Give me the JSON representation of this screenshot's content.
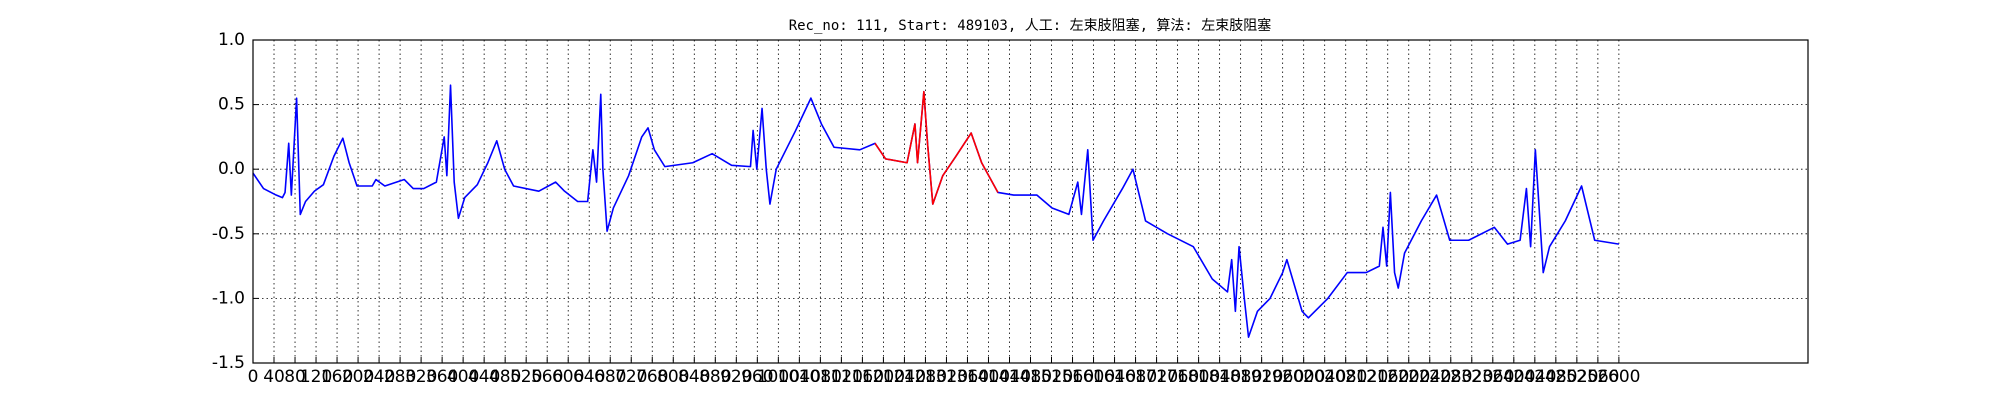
{
  "chart_data": {
    "type": "line",
    "title": "Rec_no: 111, Start: 489103, 人工: 左束肢阻塞, 算法: 左束肢阻塞",
    "series": [
      {
        "name": "blue",
        "color": "#0000ff",
        "x": [
          0,
          20,
          44,
          56,
          61,
          68,
          73,
          83,
          90,
          100,
          117,
          134,
          154,
          171,
          183,
          198,
          227,
          234,
          251,
          288,
          305,
          325,
          349,
          364,
          369,
          376,
          383,
          391,
          403,
          427,
          447,
          464,
          479,
          496,
          544,
          576,
          593,
          618,
          637,
          647,
          654,
          662,
          666,
          674,
          686,
          715,
          740,
          752,
          764,
          784,
          837,
          874,
          911,
          947,
          952,
          959,
          969,
          977,
          984,
          996,
          1033,
          1062,
          1082,
          1106,
          1155,
          1184,
          1204,
          1245,
          1260,
          1265,
          1277,
          1284,
          1294,
          1313,
          1338,
          1367,
          1387,
          1418,
          1448,
          1492,
          1521,
          1553,
          1570,
          1577,
          1589,
          1599,
          1619,
          1655,
          1675,
          1699,
          1741,
          1790,
          1826,
          1855,
          1863,
          1870,
          1877,
          1887,
          1895,
          1912,
          1936,
          1960,
          1968,
          1997,
          2009,
          2046,
          2083,
          2119,
          2144,
          2151,
          2158,
          2165,
          2173,
          2180,
          2192,
          2224,
          2253,
          2278,
          2314,
          2363,
          2388,
          2412,
          2424,
          2432,
          2441,
          2449,
          2456,
          2468,
          2498,
          2529,
          2554,
          2600
        ],
        "values": [
          -0.03,
          -0.15,
          -0.2,
          -0.22,
          -0.18,
          0.2,
          -0.2,
          0.55,
          -0.35,
          -0.25,
          -0.17,
          -0.12,
          0.1,
          0.24,
          0.05,
          -0.13,
          -0.13,
          -0.08,
          -0.13,
          -0.08,
          -0.15,
          -0.15,
          -0.1,
          0.25,
          -0.05,
          0.65,
          -0.1,
          -0.38,
          -0.22,
          -0.12,
          0.05,
          0.22,
          0.0,
          -0.13,
          -0.17,
          -0.1,
          -0.17,
          -0.25,
          -0.25,
          0.15,
          -0.1,
          0.58,
          0.0,
          -0.48,
          -0.3,
          -0.05,
          0.25,
          0.32,
          0.15,
          0.02,
          0.05,
          0.12,
          0.03,
          0.02,
          0.3,
          0.0,
          0.47,
          0.0,
          -0.27,
          0.0,
          0.3,
          0.55,
          0.35,
          0.17,
          0.15,
          0.2,
          0.08,
          0.05,
          0.35,
          0.05,
          0.6,
          0.2,
          -0.27,
          -0.05,
          0.1,
          0.28,
          0.05,
          -0.18,
          -0.2,
          -0.2,
          -0.3,
          -0.35,
          -0.1,
          -0.35,
          0.15,
          -0.55,
          -0.4,
          -0.15,
          0.0,
          -0.4,
          -0.5,
          -0.6,
          -0.85,
          -0.95,
          -0.7,
          -1.1,
          -0.6,
          -1.0,
          -1.3,
          -1.1,
          -1.0,
          -0.8,
          -0.7,
          -1.1,
          -1.15,
          -1.0,
          -0.8,
          -0.8,
          -0.75,
          -0.45,
          -0.75,
          -0.18,
          -0.8,
          -0.92,
          -0.65,
          -0.4,
          -0.2,
          -0.55,
          -0.55,
          -0.45,
          -0.58,
          -0.55,
          -0.15,
          -0.6,
          0.15,
          -0.35,
          -0.8,
          -0.6,
          -0.4,
          -0.13,
          -0.55,
          -0.58
        ]
      },
      {
        "name": "red",
        "color": "#ff0000",
        "x": [
          1184,
          1204,
          1245,
          1260,
          1265,
          1277,
          1284,
          1294,
          1313,
          1338,
          1367,
          1387,
          1418
        ],
        "values": [
          0.2,
          0.08,
          0.05,
          0.35,
          0.05,
          0.6,
          0.2,
          -0.27,
          -0.05,
          0.1,
          0.28,
          0.05,
          -0.18
        ]
      }
    ],
    "xlim": [
      0,
      2960
    ],
    "xticks": [
      0,
      40,
      80,
      120,
      160,
      200,
      240,
      280,
      320,
      360,
      400,
      440,
      480,
      520,
      560,
      600,
      640,
      680,
      720,
      760,
      800,
      840,
      880,
      920,
      960,
      1000,
      1040,
      1080,
      1120,
      1160,
      1200,
      1240,
      1280,
      1320,
      1360,
      1400,
      1440,
      1480,
      1520,
      1560,
      1600,
      1640,
      1680,
      1720,
      1760,
      1800,
      1840,
      1880,
      1920,
      1960,
      2000,
      2040,
      2080,
      2120,
      2160,
      2200,
      2240,
      2280,
      2320,
      2360,
      2400,
      2440,
      2480,
      2520,
      2560,
      2600
    ],
    "ylim": [
      -1.5,
      1.0
    ],
    "yticks": [
      -1.5,
      {
        "value": -1.0,
        "label": "-1.0"
      },
      -0.5,
      {
        "value": 0.0,
        "label": "0.0"
      },
      0.5,
      {
        "value": 1.0,
        "label": "1.0"
      }
    ],
    "grid": true
  }
}
